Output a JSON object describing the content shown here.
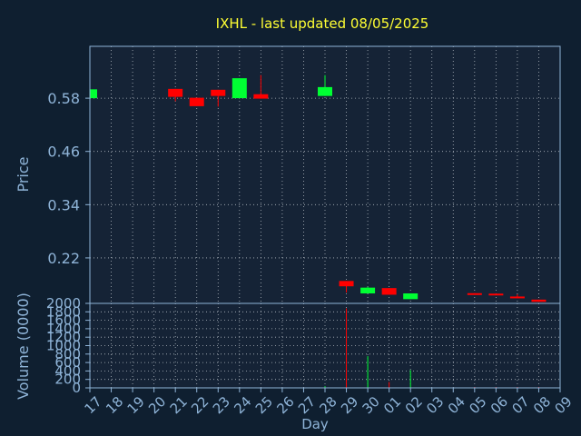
{
  "colors": {
    "background": "#0f1f30",
    "plot_background": "#152336",
    "title": "#ffff33",
    "axis_text": "#8fb4d8",
    "axis_line": "#8fb4d8",
    "grid": "#b0b8c0",
    "up": "#00ff33",
    "down": "#ff0000"
  },
  "chart_data": [
    {
      "type": "candlestick",
      "title": "IXHL - last updated 08/05/2025",
      "ylabel": "Price",
      "ylim": [
        0.1175,
        0.6969
      ],
      "yticks": [
        0.22,
        0.34,
        0.46,
        0.58
      ],
      "ytick_labels": [
        "0.22",
        "0.34",
        "0.46",
        "0.58"
      ],
      "grid": true,
      "candles": [
        {
          "day": "17",
          "open": 0.58,
          "close": 0.6,
          "high": 0.6,
          "low": 0.58
        },
        {
          "day": "21",
          "open": 0.601,
          "close": 0.583,
          "high": 0.601,
          "low": 0.573
        },
        {
          "day": "22",
          "open": 0.581,
          "close": 0.562,
          "high": 0.581,
          "low": 0.562
        },
        {
          "day": "23",
          "open": 0.599,
          "close": 0.585,
          "high": 0.599,
          "low": 0.561
        },
        {
          "day": "24",
          "open": 0.58,
          "close": 0.625,
          "high": 0.625,
          "low": 0.58
        },
        {
          "day": "25",
          "open": 0.589,
          "close": 0.579,
          "high": 0.632,
          "low": 0.579
        },
        {
          "day": "28",
          "open": 0.585,
          "close": 0.605,
          "high": 0.632,
          "low": 0.585
        },
        {
          "day": "29",
          "open": 0.168,
          "close": 0.156,
          "high": 0.168,
          "low": 0.142
        },
        {
          "day": "30",
          "open": 0.14,
          "close": 0.153,
          "high": 0.155,
          "low": 0.14
        },
        {
          "day": "01",
          "open": 0.152,
          "close": 0.137,
          "high": 0.152,
          "low": 0.137
        },
        {
          "day": "02",
          "open": 0.127,
          "close": 0.14,
          "high": 0.14,
          "low": 0.127
        },
        {
          "day": "05",
          "open": 0.1405,
          "close": 0.1395,
          "high": 0.1405,
          "low": 0.1395
        },
        {
          "day": "06",
          "open": 0.1395,
          "close": 0.138,
          "high": 0.1395,
          "low": 0.138
        },
        {
          "day": "07",
          "open": 0.133,
          "close": 0.129,
          "high": 0.138,
          "low": 0.129
        },
        {
          "day": "08",
          "open": 0.126,
          "close": 0.121,
          "high": 0.126,
          "low": 0.121
        }
      ]
    },
    {
      "type": "bar",
      "ylabel": "Volume (0000)",
      "xlabel": "Day",
      "ylim": [
        0,
        2000
      ],
      "yticks": [
        0,
        200,
        400,
        600,
        800,
        1000,
        1200,
        1400,
        1600,
        1800,
        2000
      ],
      "ytick_labels": [
        "0",
        "200",
        "400",
        "600",
        "800",
        "1000",
        "1200",
        "1400",
        "1600",
        "1800",
        "2000"
      ],
      "categories": [
        "17",
        "18",
        "19",
        "20",
        "21",
        "22",
        "23",
        "24",
        "25",
        "26",
        "27",
        "28",
        "29",
        "30",
        "01",
        "02",
        "03",
        "04",
        "05",
        "06",
        "07",
        "08",
        "09"
      ],
      "bars": [
        {
          "day": "28",
          "value": 40,
          "direction": "up"
        },
        {
          "day": "29",
          "value": 1880,
          "direction": "down"
        },
        {
          "day": "30",
          "value": 750,
          "direction": "up"
        },
        {
          "day": "01",
          "value": 140,
          "direction": "down"
        },
        {
          "day": "02",
          "value": 420,
          "direction": "up"
        },
        {
          "day": "05",
          "value": 20,
          "direction": "down"
        },
        {
          "day": "06",
          "value": 20,
          "direction": "down"
        },
        {
          "day": "07",
          "value": 20,
          "direction": "down"
        },
        {
          "day": "08",
          "value": 20,
          "direction": "down"
        }
      ]
    }
  ]
}
